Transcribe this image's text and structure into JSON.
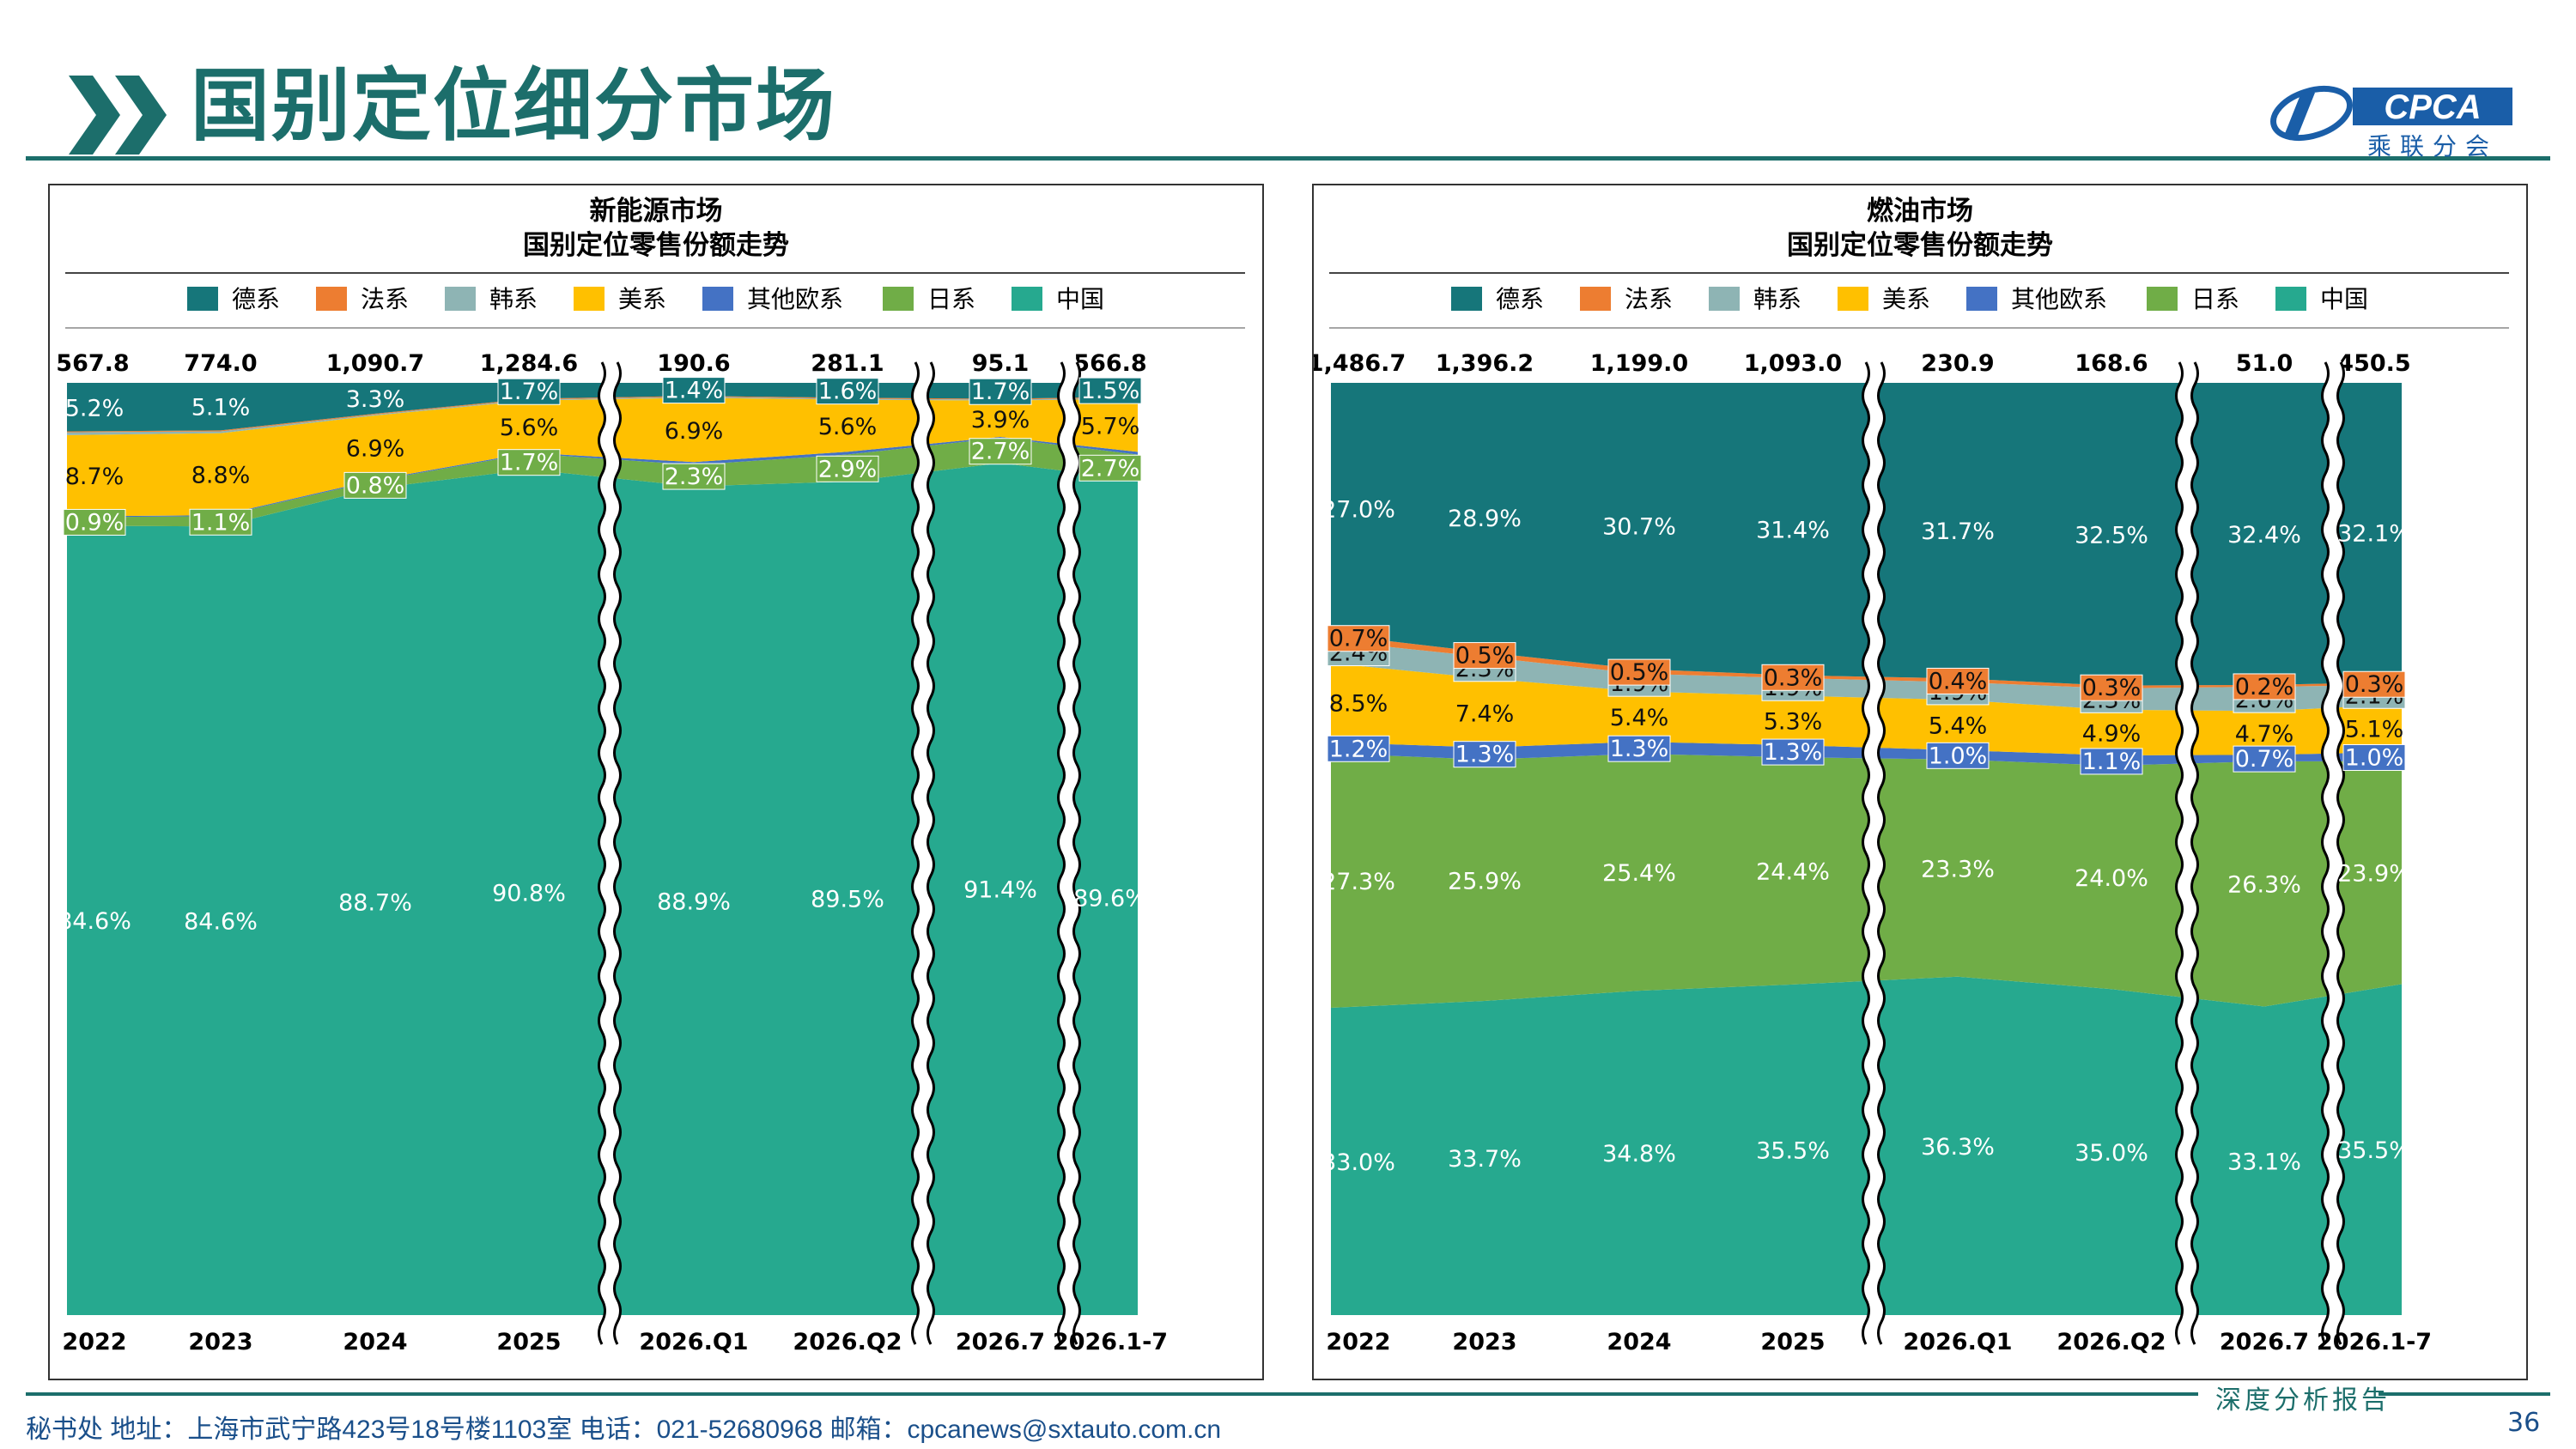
{
  "page": {
    "title": "国别定位细分市场",
    "logo_text": "CPCA",
    "logo_sub": "乘联分会",
    "footer": "秘书处  地址：上海市武宁路423号18号楼1103室  电话：021-52680968  邮箱：cpcanews@sxtauto.com.cn",
    "report_label": "深度分析报告",
    "page_number": "36"
  },
  "colors": {
    "德系": "#16767a",
    "法系": "#ed7d31",
    "韩系": "#8eb4b4",
    "美系": "#ffc000",
    "其他欧系": "#4472c4",
    "日系": "#70ad47",
    "中国": "#26a98f",
    "brand": "#1c6e6b"
  },
  "chart_data": [
    {
      "type": "area",
      "title": "新能源市场",
      "subtitle": "国别定位零售份额走势",
      "stacked": "percent",
      "legend": [
        "德系",
        "法系",
        "韩系",
        "美系",
        "其他欧系",
        "日系",
        "中国"
      ],
      "legend_position": "top",
      "categories": [
        "2022",
        "2023",
        "2024",
        "2025",
        "2026.Q1",
        "2026.Q2",
        "2026.7",
        "2026.1-7"
      ],
      "totals": [
        "567.8",
        "774.0",
        "1,090.7",
        "1,284.6",
        "190.6",
        "281.1",
        "95.1",
        "566.8"
      ],
      "series": [
        {
          "name": "中国",
          "values": [
            84.6,
            84.6,
            88.7,
            90.8,
            88.9,
            89.5,
            91.4,
            89.6
          ],
          "labels": [
            "84.6%",
            "84.6%",
            "88.7%",
            "90.8%",
            "88.9%",
            "89.5%",
            "91.4%",
            "89.6%"
          ]
        },
        {
          "name": "日系",
          "values": [
            0.9,
            1.1,
            0.8,
            1.7,
            2.3,
            2.9,
            2.7,
            2.7
          ],
          "labels": [
            "0.9%",
            "1.1%",
            "0.8%",
            "1.7%",
            "2.3%",
            "2.9%",
            "2.7%",
            "2.7%"
          ]
        },
        {
          "name": "其他欧系",
          "values": [
            0.1,
            0.1,
            0.1,
            0.1,
            0.3,
            0.3,
            0.1,
            0.3
          ],
          "labels": [
            "",
            "",
            "",
            "",
            "",
            "",
            "",
            ""
          ]
        },
        {
          "name": "美系",
          "values": [
            8.7,
            8.8,
            6.9,
            5.6,
            6.9,
            5.6,
            3.9,
            5.7
          ],
          "labels": [
            "8.7%",
            "8.8%",
            "6.9%",
            "5.6%",
            "6.9%",
            "5.6%",
            "3.9%",
            "5.7%"
          ]
        },
        {
          "name": "韩系",
          "values": [
            0.3,
            0.2,
            0.1,
            0.1,
            0.1,
            0.1,
            0.1,
            0.1
          ],
          "labels": [
            "",
            "",
            "",
            "",
            "",
            "",
            "",
            ""
          ]
        },
        {
          "name": "法系",
          "values": [
            0.1,
            0.1,
            0.1,
            0.1,
            0.1,
            0.1,
            0.1,
            0.1
          ],
          "labels": [
            "",
            "",
            "",
            "",
            "",
            "",
            "",
            ""
          ]
        },
        {
          "name": "德系",
          "values": [
            5.2,
            5.1,
            3.3,
            1.7,
            1.4,
            1.6,
            1.7,
            1.5
          ],
          "labels": [
            "5.2%",
            "5.1%",
            "3.3%",
            "1.7%",
            "1.4%",
            "1.6%",
            "1.7%",
            "1.5%"
          ]
        }
      ],
      "breaks_after": [
        "2025",
        "2026.Q2",
        "2026.7"
      ]
    },
    {
      "type": "area",
      "title": "燃油市场",
      "subtitle": "国别定位零售份额走势",
      "stacked": "percent",
      "legend": [
        "德系",
        "法系",
        "韩系",
        "美系",
        "其他欧系",
        "日系",
        "中国"
      ],
      "legend_position": "top",
      "categories": [
        "2022",
        "2023",
        "2024",
        "2025",
        "2026.Q1",
        "2026.Q2",
        "2026.7",
        "2026.1-7"
      ],
      "totals": [
        "1,486.7",
        "1,396.2",
        "1,199.0",
        "1,093.0",
        "230.9",
        "168.6",
        "51.0",
        "450.5"
      ],
      "series": [
        {
          "name": "中国",
          "values": [
            33.0,
            33.7,
            34.8,
            35.5,
            36.3,
            35.0,
            33.1,
            35.5
          ],
          "labels": [
            "33.0%",
            "33.7%",
            "34.8%",
            "35.5%",
            "36.3%",
            "35.0%",
            "33.1%",
            "35.5%"
          ]
        },
        {
          "name": "日系",
          "values": [
            27.3,
            25.9,
            25.4,
            24.4,
            23.3,
            24.0,
            26.3,
            23.9
          ],
          "labels": [
            "27.3%",
            "25.9%",
            "25.4%",
            "24.4%",
            "23.3%",
            "24.0%",
            "26.3%",
            "23.9%"
          ]
        },
        {
          "name": "其他欧系",
          "values": [
            1.2,
            1.3,
            1.3,
            1.3,
            1.0,
            1.1,
            0.7,
            1.0
          ],
          "labels": [
            "1.2%",
            "1.3%",
            "1.3%",
            "1.3%",
            "1.0%",
            "1.1%",
            "0.7%",
            "1.0%"
          ]
        },
        {
          "name": "美系",
          "values": [
            8.5,
            7.4,
            5.4,
            5.3,
            5.4,
            4.9,
            4.7,
            5.1
          ],
          "labels": [
            "8.5%",
            "7.4%",
            "5.4%",
            "5.3%",
            "5.4%",
            "4.9%",
            "4.7%",
            "5.1%"
          ]
        },
        {
          "name": "韩系",
          "values": [
            2.4,
            2.3,
            1.9,
            1.9,
            1.9,
            2.3,
            2.6,
            2.1
          ],
          "labels": [
            "2.4%",
            "2.3%",
            "1.9%",
            "1.9%",
            "1.9%",
            "2.3%",
            "2.6%",
            "2.1%"
          ]
        },
        {
          "name": "法系",
          "values": [
            0.7,
            0.5,
            0.5,
            0.3,
            0.4,
            0.3,
            0.2,
            0.3
          ],
          "labels": [
            "0.7%",
            "0.5%",
            "0.5%",
            "0.3%",
            "0.4%",
            "0.3%",
            "0.2%",
            "0.3%"
          ]
        },
        {
          "name": "德系",
          "values": [
            27.0,
            28.9,
            30.7,
            31.4,
            31.7,
            32.5,
            32.4,
            32.1
          ],
          "labels": [
            "27.0%",
            "28.9%",
            "30.7%",
            "31.4%",
            "31.7%",
            "32.5%",
            "32.4%",
            "32.1%"
          ]
        }
      ],
      "breaks_after": [
        "2025",
        "2026.Q2",
        "2026.7"
      ]
    }
  ]
}
